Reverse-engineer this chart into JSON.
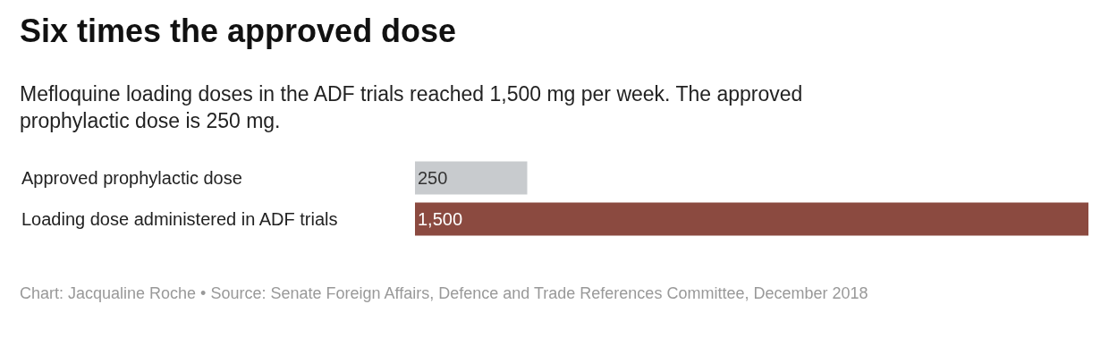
{
  "chart_data": {
    "type": "bar",
    "orientation": "horizontal",
    "title": "Six times the approved dose",
    "subtitle": "Mefloquine loading doses in the ADF trials reached 1,500 mg per week. The approved prophylactic dose is 250 mg.",
    "categories": [
      "Approved prophylactic dose",
      "Loading dose administered in ADF trials"
    ],
    "values": [
      250,
      1500
    ],
    "colors": [
      "#c8cbce",
      "#8b4a40"
    ],
    "value_labels": [
      "250",
      "1,500"
    ],
    "annotations": [
      "Chart: Jacqualine Roche • Source: Senate Foreign Affairs, Defence and Trade References Committee, December 2018"
    ],
    "legend": false
  }
}
